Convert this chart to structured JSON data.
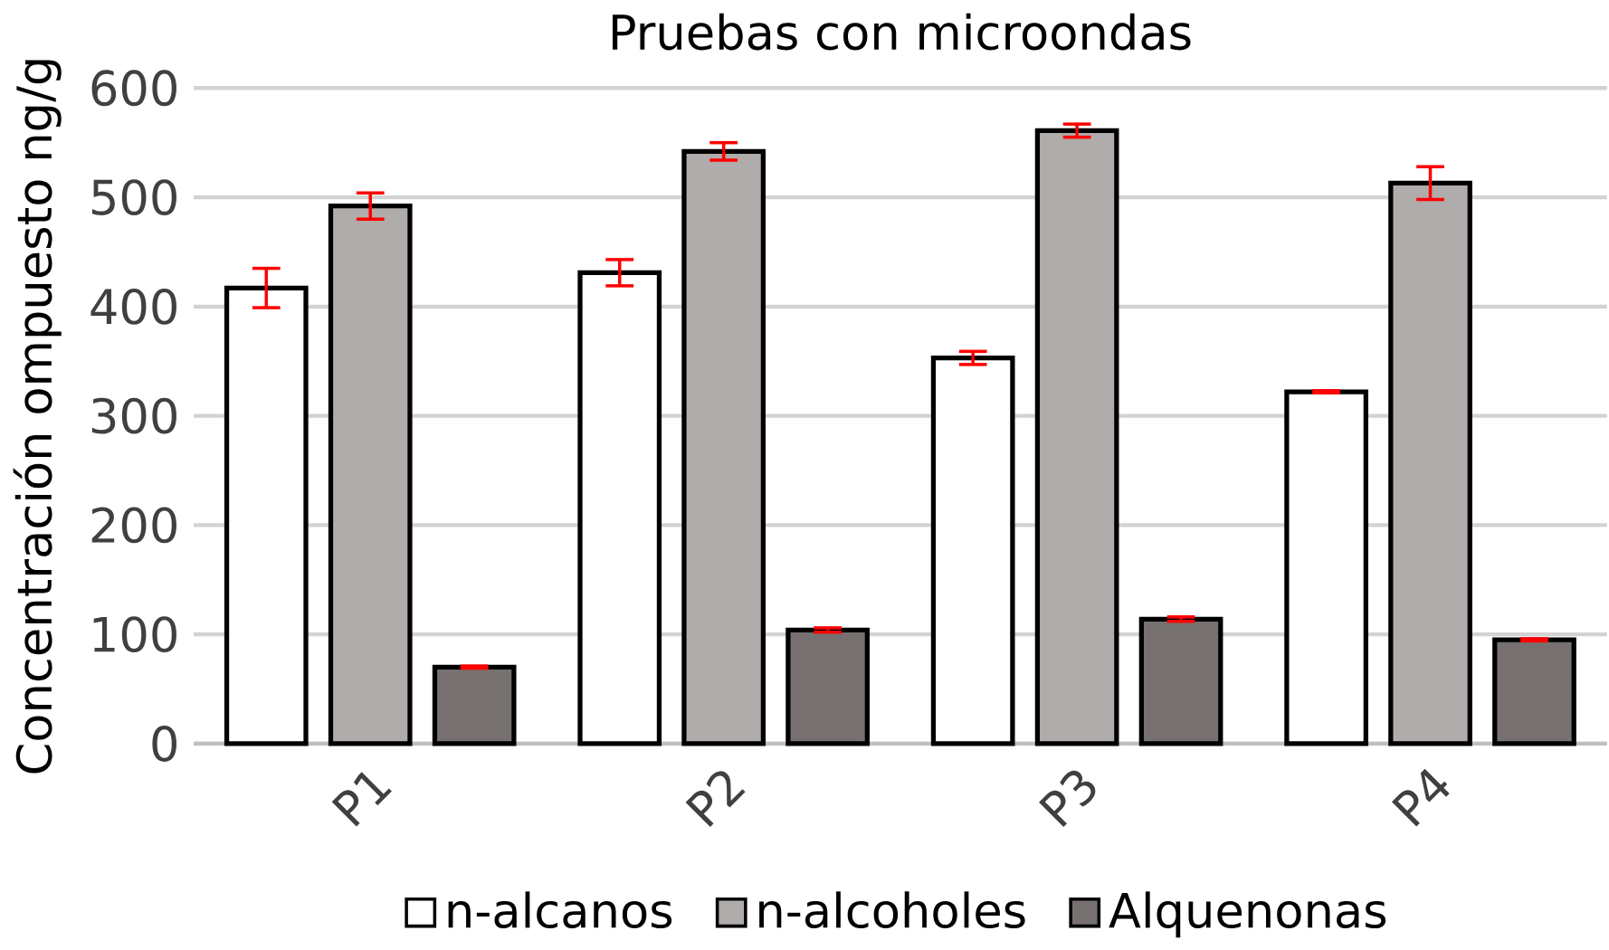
{
  "chart_data": {
    "type": "bar",
    "title": "Pruebas con microondas",
    "ylabel": "Concentración ompuesto ng/g",
    "categories": [
      "P1",
      "P2",
      "P3",
      "P4"
    ],
    "series": [
      {
        "name": "n-alcanos",
        "color": "#ffffff",
        "values": [
          417,
          431,
          353,
          322
        ],
        "errors": [
          18,
          12,
          6,
          1
        ]
      },
      {
        "name": "n-alcoholes",
        "color": "#b0acab",
        "values": [
          492,
          542,
          561,
          513
        ],
        "errors": [
          12,
          8,
          6,
          15
        ]
      },
      {
        "name": "Alquenonas",
        "color": "#767170",
        "values": [
          70,
          104,
          114,
          95
        ],
        "errors": [
          1,
          2,
          2,
          1
        ]
      }
    ],
    "ylim": [
      0,
      600
    ],
    "yticks": [
      0,
      100,
      200,
      300,
      400,
      500,
      600
    ],
    "grid": "y",
    "legend": "bottom"
  }
}
